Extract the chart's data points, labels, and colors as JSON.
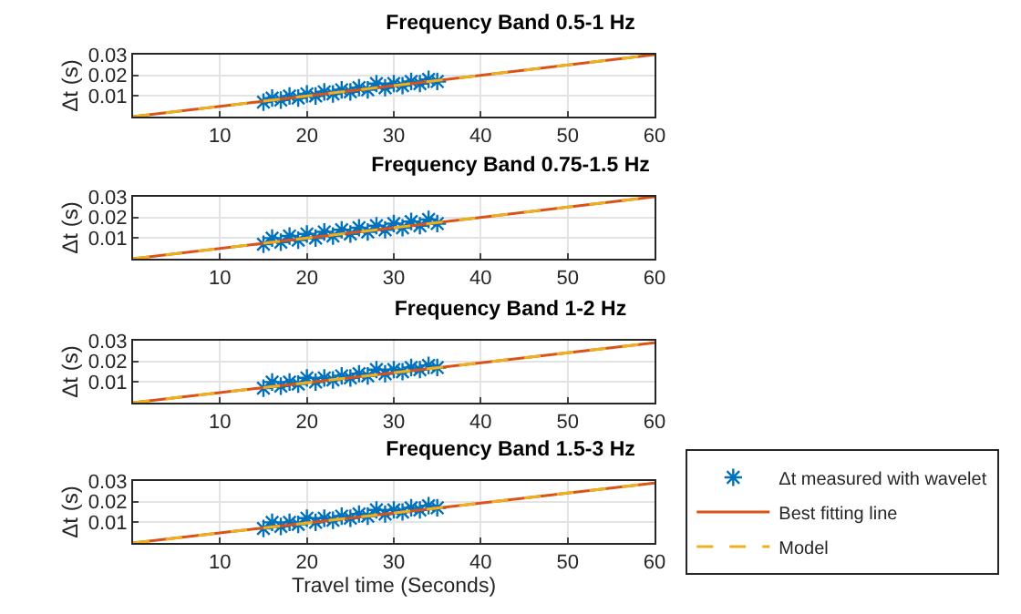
{
  "chart_data": [
    {
      "type": "line",
      "title": "Frequency Band 0.5-1 Hz",
      "ylabel": "Δt (s)",
      "xlim": [
        0,
        60
      ],
      "xticks": [
        10,
        20,
        30,
        40,
        50,
        60
      ],
      "ylim": [
        0,
        0.03
      ],
      "yticks": [
        0.01,
        0.02,
        0.03
      ],
      "grid": true,
      "legend": false,
      "series": [
        {
          "type": "scatter",
          "color": "#0072bd",
          "marker": "cross",
          "x": [
            15,
            16,
            17,
            18,
            19,
            20,
            21,
            22,
            23,
            24,
            25,
            26,
            27,
            28,
            29,
            30,
            31,
            32,
            33,
            34,
            35
          ],
          "values": [
            0.007,
            0.009,
            0.008,
            0.01,
            0.009,
            0.011,
            0.01,
            0.012,
            0.011,
            0.013,
            0.012,
            0.014,
            0.013,
            0.016,
            0.014,
            0.016,
            0.015,
            0.017,
            0.016,
            0.018,
            0.017
          ]
        },
        {
          "type": "line",
          "color": "#d95319",
          "line_style": "solid",
          "x": [
            0,
            60
          ],
          "values": [
            0,
            0.03
          ]
        },
        {
          "type": "line",
          "color": "#edb120",
          "line_style": "dashed",
          "x": [
            0,
            60
          ],
          "values": [
            0,
            0.03
          ]
        }
      ]
    },
    {
      "type": "line",
      "title": "Frequency Band 0.75-1.5 Hz",
      "ylabel": "Δt (s)",
      "xlim": [
        0,
        60
      ],
      "xticks": [
        10,
        20,
        30,
        40,
        50,
        60
      ],
      "ylim": [
        0,
        0.03
      ],
      "yticks": [
        0.01,
        0.02,
        0.03
      ],
      "grid": true,
      "legend": false,
      "series": [
        {
          "type": "scatter",
          "color": "#0072bd",
          "marker": "cross",
          "x": [
            15,
            16,
            17,
            18,
            19,
            20,
            21,
            22,
            23,
            24,
            25,
            26,
            27,
            28,
            29,
            30,
            31,
            32,
            33,
            34,
            35
          ],
          "values": [
            0.007,
            0.01,
            0.008,
            0.011,
            0.009,
            0.012,
            0.01,
            0.013,
            0.011,
            0.014,
            0.012,
            0.015,
            0.013,
            0.016,
            0.014,
            0.017,
            0.015,
            0.018,
            0.016,
            0.019,
            0.017
          ]
        },
        {
          "type": "line",
          "color": "#d95319",
          "line_style": "solid",
          "x": [
            0,
            60
          ],
          "values": [
            0,
            0.03
          ]
        },
        {
          "type": "line",
          "color": "#edb120",
          "line_style": "dashed",
          "x": [
            0,
            60
          ],
          "values": [
            0,
            0.03
          ]
        }
      ]
    },
    {
      "type": "line",
      "title": "Frequency Band 1-2 Hz",
      "ylabel": "Δt (s)",
      "xlim": [
        0,
        60
      ],
      "xticks": [
        10,
        20,
        30,
        40,
        50,
        60
      ],
      "ylim": [
        0,
        0.03
      ],
      "yticks": [
        0.01,
        0.02,
        0.03
      ],
      "grid": true,
      "legend": false,
      "series": [
        {
          "type": "scatter",
          "color": "#0072bd",
          "marker": "cross",
          "x": [
            15,
            16,
            17,
            18,
            19,
            20,
            21,
            22,
            23,
            24,
            25,
            26,
            27,
            28,
            29,
            30,
            31,
            32,
            33,
            34,
            35
          ],
          "values": [
            0.007,
            0.01,
            0.008,
            0.01,
            0.009,
            0.012,
            0.01,
            0.012,
            0.011,
            0.013,
            0.012,
            0.014,
            0.013,
            0.016,
            0.014,
            0.016,
            0.015,
            0.017,
            0.016,
            0.018,
            0.017
          ]
        },
        {
          "type": "line",
          "color": "#d95319",
          "line_style": "solid",
          "x": [
            0,
            60
          ],
          "values": [
            0,
            0.029
          ]
        },
        {
          "type": "line",
          "color": "#edb120",
          "line_style": "dashed",
          "x": [
            0,
            60
          ],
          "values": [
            0,
            0.029
          ]
        }
      ]
    },
    {
      "type": "line",
      "title": "Frequency Band 1.5-3 Hz",
      "xlabel": "Travel time (Seconds)",
      "ylabel": "Δt (s)",
      "xlim": [
        0,
        60
      ],
      "xticks": [
        10,
        20,
        30,
        40,
        50,
        60
      ],
      "ylim": [
        0,
        0.03
      ],
      "yticks": [
        0.01,
        0.02,
        0.03
      ],
      "grid": true,
      "legend": "right",
      "series": [
        {
          "type": "scatter",
          "name": "Δt measured with wavelet",
          "color": "#0072bd",
          "marker": "cross",
          "x": [
            15,
            16,
            17,
            18,
            19,
            20,
            21,
            22,
            23,
            24,
            25,
            26,
            27,
            28,
            29,
            30,
            31,
            32,
            33,
            34,
            35
          ],
          "values": [
            0.007,
            0.01,
            0.008,
            0.01,
            0.009,
            0.012,
            0.01,
            0.012,
            0.011,
            0.013,
            0.012,
            0.014,
            0.013,
            0.016,
            0.014,
            0.016,
            0.015,
            0.017,
            0.016,
            0.018,
            0.017
          ]
        },
        {
          "type": "line",
          "name": "Best fitting line",
          "color": "#d95319",
          "line_style": "solid",
          "x": [
            0,
            60
          ],
          "values": [
            0,
            0.029
          ]
        },
        {
          "type": "line",
          "name": "Model",
          "color": "#edb120",
          "line_style": "dashed",
          "x": [
            0,
            60
          ],
          "values": [
            0,
            0.029
          ]
        }
      ]
    }
  ]
}
